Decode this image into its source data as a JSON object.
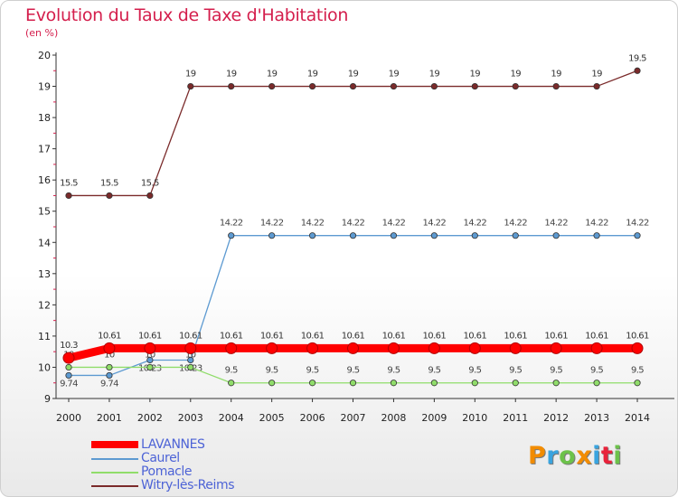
{
  "title": "Evolution du Taux de Taxe d'Habitation",
  "unit_label": "(en %)",
  "logo": {
    "letters": [
      "P",
      "r",
      "o",
      "x",
      "i",
      "t",
      "i"
    ],
    "colors": [
      "#f28c00",
      "#3aa4df",
      "#6cc24a",
      "#f28c00",
      "#3aa4df",
      "#e8233b",
      "#6cc24a"
    ]
  },
  "chart_data": {
    "type": "line",
    "title": "Evolution du Taux de Taxe d'Habitation",
    "ylabel": "(en %)",
    "xlabel": "",
    "ylim": [
      9,
      20
    ],
    "yticks": [
      "9",
      "10",
      "11",
      "12",
      "13",
      "14",
      "15",
      "16",
      "17",
      "18",
      "19",
      "20"
    ],
    "categories": [
      "2000",
      "2001",
      "2002",
      "2003",
      "2004",
      "2005",
      "2006",
      "2007",
      "2008",
      "2009",
      "2010",
      "2011",
      "2012",
      "2013",
      "2014"
    ],
    "series": [
      {
        "name": "Witry-lès-Reims",
        "color": "#7a2a2a",
        "values": [
          15.5,
          15.5,
          15.5,
          19,
          19,
          19,
          19,
          19,
          19,
          19,
          19,
          19,
          19,
          19,
          19.5
        ],
        "labels": [
          "15.5",
          "15.5",
          "15.5",
          "19",
          "19",
          "19",
          "19",
          "19",
          "19",
          "19",
          "19",
          "19",
          "19",
          "19",
          "19.5"
        ]
      },
      {
        "name": "Caurel",
        "color": "#5d9ad1",
        "values": [
          9.74,
          9.74,
          10.23,
          10.23,
          14.22,
          14.22,
          14.22,
          14.22,
          14.22,
          14.22,
          14.22,
          14.22,
          14.22,
          14.22,
          14.22
        ],
        "labels": [
          "9.74",
          "9.74",
          "10.23",
          "10.23",
          "14.22",
          "14.22",
          "14.22",
          "14.22",
          "14.22",
          "14.22",
          "14.22",
          "14.22",
          "14.22",
          "14.22",
          "14.22"
        ]
      },
      {
        "name": "Pomacle",
        "color": "#90dd6a",
        "values": [
          10,
          10,
          10,
          10,
          9.5,
          9.5,
          9.5,
          9.5,
          9.5,
          9.5,
          9.5,
          9.5,
          9.5,
          9.5,
          9.5
        ],
        "labels": [
          "10",
          "10",
          "10",
          "10",
          "9.5",
          "9.5",
          "9.5",
          "9.5",
          "9.5",
          "9.5",
          "9.5",
          "9.5",
          "9.5",
          "9.5",
          "9.5"
        ]
      },
      {
        "name": "LAVANNES",
        "color": "#ff0000",
        "values": [
          10.3,
          10.61,
          10.61,
          10.61,
          10.61,
          10.61,
          10.61,
          10.61,
          10.61,
          10.61,
          10.61,
          10.61,
          10.61,
          10.61,
          10.61
        ],
        "labels": [
          "10.3",
          "10.61",
          "10.61",
          "10.61",
          "10.61",
          "10.61",
          "10.61",
          "10.61",
          "10.61",
          "10.61",
          "10.61",
          "10.61",
          "10.61",
          "10.61",
          "10.61"
        ]
      }
    ],
    "legend": [
      "LAVANNES",
      "Caurel",
      "Pomacle",
      "Witry-lès-Reims"
    ],
    "legend_colors": [
      "#ff0000",
      "#5d9ad1",
      "#90dd6a",
      "#7a2a2a"
    ]
  }
}
